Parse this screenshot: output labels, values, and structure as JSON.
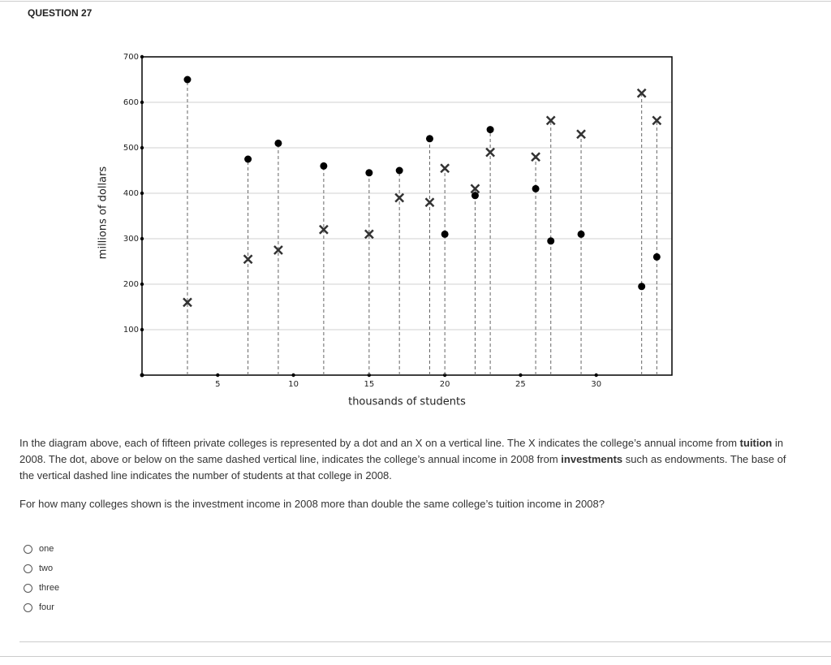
{
  "header": {
    "title": "QUESTION 27"
  },
  "chart_data": {
    "type": "scatter",
    "xlabel": "thousands of students",
    "ylabel": "millions of dollars",
    "x": [
      3,
      7,
      9,
      12,
      15,
      17,
      19,
      20,
      22,
      23,
      26,
      27,
      29,
      33,
      34
    ],
    "series": [
      {
        "marker": "dot",
        "color": "#000000",
        "values": [
          650,
          475,
          510,
          460,
          445,
          450,
          520,
          310,
          395,
          540,
          410,
          295,
          310,
          195,
          260
        ]
      },
      {
        "marker": "x",
        "color": "#333333",
        "values": [
          160,
          255,
          275,
          320,
          310,
          390,
          380,
          455,
          410,
          490,
          480,
          560,
          530,
          620,
          560
        ]
      }
    ],
    "xlim": [
      0,
      35
    ],
    "ylim": [
      0,
      700
    ],
    "xticks": [
      5,
      10,
      15,
      20,
      25,
      30
    ],
    "yticks": [
      100,
      200,
      300,
      400,
      500,
      600,
      700
    ],
    "grid": true,
    "grid_color": "#d0d0d0"
  },
  "description": {
    "segments": [
      {
        "text": "In the diagram above, each of fifteen private colleges is represented by a dot and an X on a vertical line. The X indicates the college’s annual income from ",
        "bold": false
      },
      {
        "text": "tuition",
        "bold": true
      },
      {
        "text": " in 2008. The dot, above or below on the same dashed vertical line, indicates the college’s annual income in 2008 from ",
        "bold": false
      },
      {
        "text": "investments",
        "bold": true
      },
      {
        "text": " such as endowments. The base of the vertical dashed line indicates the number of students at that college in 2008.",
        "bold": false
      }
    ]
  },
  "question": "For how many colleges shown is the investment income in 2008 more than double the same college’s tuition income in 2008?",
  "options": [
    "one",
    "two",
    "three",
    "four"
  ]
}
